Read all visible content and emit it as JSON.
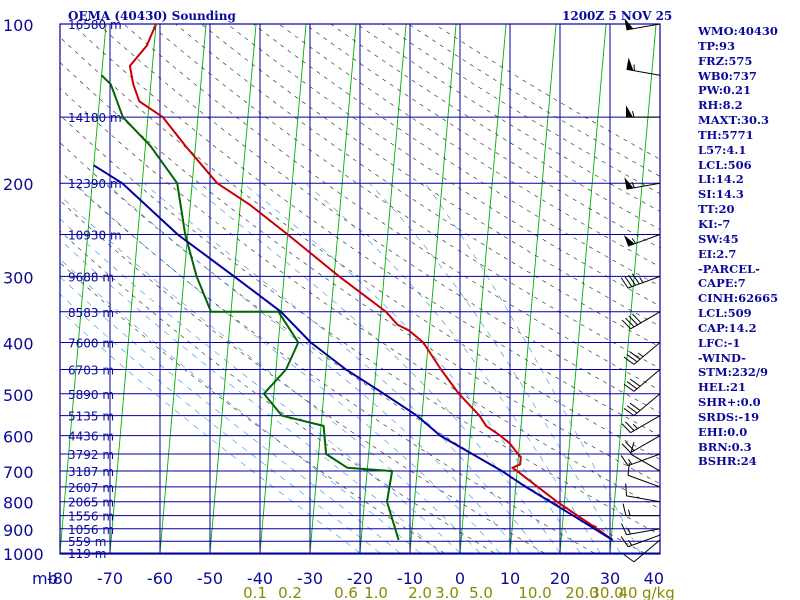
{
  "header": {
    "station_title": "OEMA (40430) Sounding",
    "valid_time": "1200Z  5 NOV 25"
  },
  "indices": [
    "WMO:40430",
    "TP:93",
    "FRZ:575",
    "WB0:737",
    "PW:0.21",
    "RH:8.2",
    "MAXT:30.3",
    "TH:5771",
    "L57:4.1",
    "LCL:506",
    "LI:14.2",
    "SI:14.3",
    "TT:20",
    "KI:-7",
    "SW:45",
    "EI:2.7",
    "-PARCEL-",
    "CAPE:7",
    "CINH:62665",
    "LCL:509",
    "CAP:14.2",
    "LFC:-1",
    "-WIND-",
    "STM:232/9",
    "HEL:21",
    "SHR+:0.0",
    "SRDS:-19",
    "EHI:0.0",
    "BRN:0.3",
    "BSHR:24"
  ],
  "colors": {
    "grid": "#0000a0",
    "isotherm": "#00b000",
    "dry_adiabat": "#202020",
    "moist_adiabat": "#3090e0",
    "temperature": "#c80000",
    "dewpoint": "#006400",
    "parcel": "#0000a0",
    "axis_text": "#0a0a9a",
    "mixing_text": "#8a8a00"
  },
  "chart_data": {
    "type": "line",
    "title": "OEMA (40430) Sounding",
    "xlabel": "",
    "ylabel": "mb",
    "x_unit": "°C",
    "y_scale": "log",
    "xlim": [
      -80,
      40
    ],
    "ylim": [
      1000,
      100
    ],
    "pressure_ticks": [
      100,
      200,
      300,
      400,
      500,
      600,
      700,
      800,
      900,
      1000
    ],
    "temperature_ticks": [
      -80,
      -70,
      -60,
      -50,
      -40,
      -30,
      -20,
      -10,
      0,
      10,
      20,
      30,
      40
    ],
    "height_labels": [
      {
        "p": 100,
        "label": "16580 m"
      },
      {
        "p": 150,
        "label": "14180 m"
      },
      {
        "p": 200,
        "label": "12390 m"
      },
      {
        "p": 250,
        "label": "10930 m"
      },
      {
        "p": 300,
        "label": "9688 m"
      },
      {
        "p": 350,
        "label": "8583 m"
      },
      {
        "p": 400,
        "label": "7600 m"
      },
      {
        "p": 450,
        "label": "6703 m"
      },
      {
        "p": 500,
        "label": "5890 m"
      },
      {
        "p": 550,
        "label": "5135 m"
      },
      {
        "p": 600,
        "label": "4436 m"
      },
      {
        "p": 650,
        "label": "3792 m"
      },
      {
        "p": 700,
        "label": "3187 m"
      },
      {
        "p": 750,
        "label": "2607 m"
      },
      {
        "p": 800,
        "label": "2065 m"
      },
      {
        "p": 850,
        "label": "1556 m"
      },
      {
        "p": 900,
        "label": "1056 m"
      },
      {
        "p": 950,
        "label": "559 m"
      },
      {
        "p": 1000,
        "label": "119 m"
      }
    ],
    "mixing_ratio_labels": [
      "0.1",
      "0.2",
      "0.6",
      "1.0",
      "2.0",
      "3.0",
      "5.0",
      "10.0",
      "20.0",
      "30.0",
      "40"
    ],
    "mixing_ratio_unit": "g/kg",
    "series": [
      {
        "key": "temperature",
        "points": [
          [
            30.3,
            945
          ],
          [
            27.0,
            900
          ],
          [
            18.5,
            800
          ],
          [
            10.0,
            700
          ],
          [
            9.0,
            690
          ],
          [
            10.5,
            680
          ],
          [
            10.5,
            660
          ],
          [
            8.0,
            620
          ],
          [
            6.0,
            600
          ],
          [
            3.0,
            575
          ],
          [
            1.5,
            550
          ],
          [
            -3.0,
            500
          ],
          [
            -7.0,
            450
          ],
          [
            -11.0,
            400
          ],
          [
            -14.0,
            380
          ],
          [
            -16.5,
            370
          ],
          [
            -19.0,
            350
          ],
          [
            -29.0,
            300
          ],
          [
            -40.0,
            250
          ],
          [
            -48.0,
            220
          ],
          [
            -55.0,
            200
          ],
          [
            -62.0,
            170
          ],
          [
            -67.0,
            150
          ],
          [
            -72.0,
            140
          ],
          [
            -73.5,
            130
          ],
          [
            -74.5,
            120
          ],
          [
            -71.5,
            110
          ],
          [
            -70.0,
            100
          ]
        ]
      },
      {
        "key": "dewpoint",
        "points": [
          [
            -12.5,
            945
          ],
          [
            -15.5,
            800
          ],
          [
            -15.0,
            700
          ],
          [
            -24.0,
            690
          ],
          [
            -28.5,
            650
          ],
          [
            -29.5,
            575
          ],
          [
            -38.0,
            550
          ],
          [
            -42.0,
            500
          ],
          [
            -38.0,
            450
          ],
          [
            -36.0,
            400
          ],
          [
            -40.5,
            350
          ],
          [
            -54.0,
            350
          ],
          [
            -57.5,
            300
          ],
          [
            -60.5,
            250
          ],
          [
            -63.0,
            200
          ],
          [
            -69.0,
            170
          ],
          [
            -75.0,
            150
          ],
          [
            -78.0,
            130
          ],
          [
            -80.0,
            125
          ]
        ]
      },
      {
        "key": "parcel",
        "points": [
          [
            30.3,
            945
          ],
          [
            22.0,
            850
          ],
          [
            12.0,
            750
          ],
          [
            7.0,
            700
          ],
          [
            -6.0,
            600
          ],
          [
            -11.0,
            550
          ],
          [
            -18.0,
            500
          ],
          [
            -26.0,
            450
          ],
          [
            -33.5,
            400
          ],
          [
            -40.0,
            350
          ],
          [
            -50.0,
            300
          ],
          [
            -62.0,
            250
          ],
          [
            -74.0,
            200
          ],
          [
            -80.0,
            185
          ]
        ]
      }
    ],
    "winds": [
      {
        "p": 945,
        "dir": 230,
        "kt": 10
      },
      {
        "p": 925,
        "dir": 250,
        "kt": 15
      },
      {
        "p": 900,
        "dir": 260,
        "kt": 15
      },
      {
        "p": 850,
        "dir": 270,
        "kt": 15
      },
      {
        "p": 800,
        "dir": 280,
        "kt": 10
      },
      {
        "p": 750,
        "dir": 290,
        "kt": 10
      },
      {
        "p": 700,
        "dir": 300,
        "kt": 10
      },
      {
        "p": 650,
        "dir": 250,
        "kt": 15
      },
      {
        "p": 600,
        "dir": 240,
        "kt": 20
      },
      {
        "p": 550,
        "dir": 240,
        "kt": 25
      },
      {
        "p": 500,
        "dir": 230,
        "kt": 30
      },
      {
        "p": 450,
        "dir": 230,
        "kt": 30
      },
      {
        "p": 400,
        "dir": 230,
        "kt": 35
      },
      {
        "p": 350,
        "dir": 240,
        "kt": 40
      },
      {
        "p": 300,
        "dir": 250,
        "kt": 45
      },
      {
        "p": 250,
        "dir": 250,
        "kt": 55
      },
      {
        "p": 200,
        "dir": 260,
        "kt": 55
      },
      {
        "p": 150,
        "dir": 270,
        "kt": 55
      },
      {
        "p": 125,
        "dir": 280,
        "kt": 55
      },
      {
        "p": 100,
        "dir": 260,
        "kt": 50
      }
    ]
  }
}
